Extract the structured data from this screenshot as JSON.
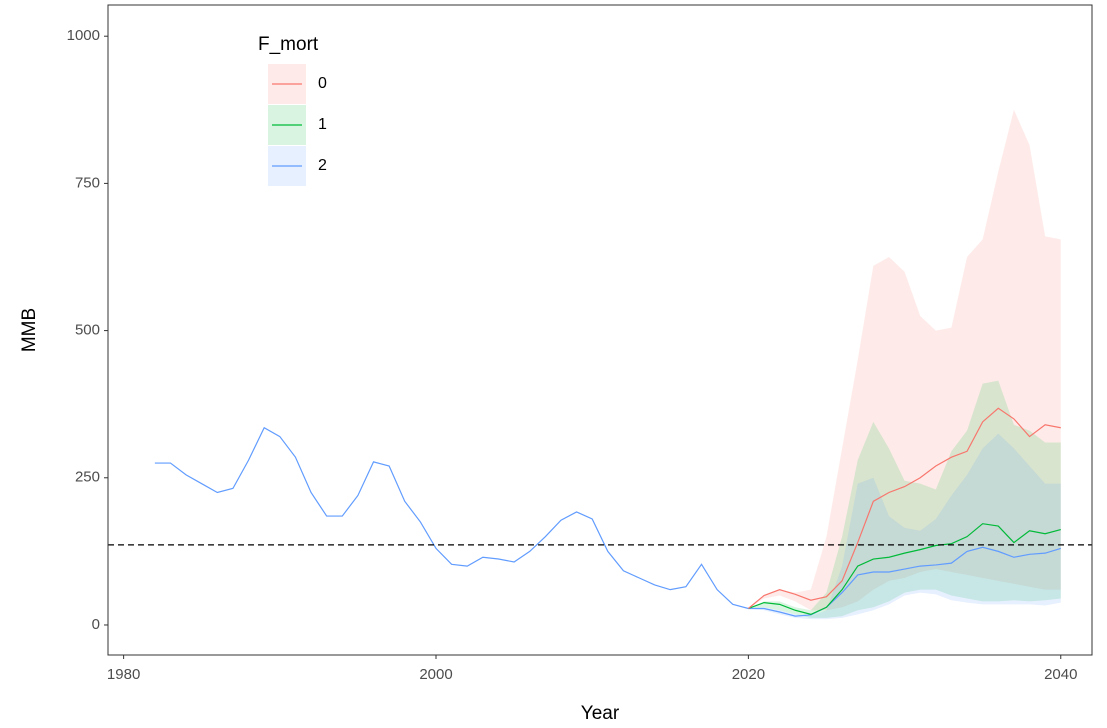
{
  "chart_data": {
    "type": "line",
    "x_label": "Year",
    "y_label": "MMB",
    "legend_title": "F_mort",
    "x": [
      1982,
      1983,
      1984,
      1985,
      1986,
      1987,
      1988,
      1989,
      1990,
      1991,
      1992,
      1993,
      1994,
      1995,
      1996,
      1997,
      1998,
      1999,
      2000,
      2001,
      2002,
      2003,
      2004,
      2005,
      2006,
      2007,
      2008,
      2009,
      2010,
      2011,
      2012,
      2013,
      2014,
      2015,
      2016,
      2017,
      2018,
      2019,
      2020,
      2021,
      2022,
      2023,
      2024,
      2025,
      2026,
      2027,
      2028,
      2029,
      2030,
      2031,
      2032,
      2033,
      2034,
      2035,
      2036,
      2037,
      2038,
      2039,
      2040
    ],
    "series": [
      {
        "name": "0",
        "color": "#F8766D",
        "values": [
          null,
          null,
          null,
          null,
          null,
          null,
          null,
          null,
          null,
          null,
          null,
          null,
          null,
          null,
          null,
          null,
          null,
          null,
          null,
          null,
          null,
          null,
          null,
          null,
          null,
          null,
          null,
          null,
          null,
          null,
          null,
          null,
          null,
          null,
          null,
          null,
          null,
          null,
          28,
          50,
          60,
          52,
          42,
          48,
          75,
          140,
          210,
          225,
          235,
          250,
          270,
          285,
          295,
          345,
          368,
          350,
          320,
          340,
          335
        ],
        "lower": [
          null,
          null,
          null,
          null,
          null,
          null,
          null,
          null,
          null,
          null,
          null,
          null,
          null,
          null,
          null,
          null,
          null,
          null,
          null,
          null,
          null,
          null,
          null,
          null,
          null,
          null,
          null,
          null,
          null,
          null,
          null,
          null,
          null,
          null,
          null,
          null,
          null,
          null,
          28,
          45,
          50,
          40,
          25,
          25,
          30,
          40,
          60,
          75,
          80,
          90,
          95,
          90,
          85,
          80,
          75,
          70,
          65,
          60,
          60
        ],
        "upper": [
          null,
          null,
          null,
          null,
          null,
          null,
          null,
          null,
          null,
          null,
          null,
          null,
          null,
          null,
          null,
          null,
          null,
          null,
          null,
          null,
          null,
          null,
          null,
          null,
          null,
          null,
          null,
          null,
          null,
          null,
          null,
          null,
          null,
          null,
          null,
          null,
          null,
          null,
          28,
          50,
          60,
          55,
          60,
          150,
          300,
          450,
          610,
          625,
          600,
          525,
          500,
          505,
          625,
          655,
          770,
          875,
          815,
          660,
          655
        ]
      },
      {
        "name": "1",
        "color": "#00BA38",
        "values": [
          null,
          null,
          null,
          null,
          null,
          null,
          null,
          null,
          null,
          null,
          null,
          null,
          null,
          null,
          null,
          null,
          null,
          null,
          null,
          null,
          null,
          null,
          null,
          null,
          null,
          null,
          null,
          null,
          null,
          null,
          null,
          null,
          null,
          null,
          null,
          null,
          null,
          null,
          28,
          38,
          35,
          25,
          18,
          30,
          60,
          100,
          112,
          115,
          122,
          128,
          135,
          138,
          150,
          172,
          168,
          140,
          160,
          155,
          162
        ],
        "lower": [
          null,
          null,
          null,
          null,
          null,
          null,
          null,
          null,
          null,
          null,
          null,
          null,
          null,
          null,
          null,
          null,
          null,
          null,
          null,
          null,
          null,
          null,
          null,
          null,
          null,
          null,
          null,
          null,
          null,
          null,
          null,
          null,
          null,
          null,
          null,
          null,
          null,
          null,
          28,
          30,
          25,
          18,
          12,
          12,
          15,
          25,
          30,
          40,
          55,
          60,
          60,
          50,
          45,
          40,
          40,
          42,
          40,
          42,
          45
        ],
        "upper": [
          null,
          null,
          null,
          null,
          null,
          null,
          null,
          null,
          null,
          null,
          null,
          null,
          null,
          null,
          null,
          null,
          null,
          null,
          null,
          null,
          null,
          null,
          null,
          null,
          null,
          null,
          null,
          null,
          null,
          null,
          null,
          null,
          null,
          null,
          null,
          null,
          null,
          null,
          28,
          40,
          40,
          30,
          25,
          55,
          150,
          280,
          345,
          300,
          245,
          240,
          230,
          295,
          330,
          410,
          415,
          340,
          330,
          310,
          310
        ]
      },
      {
        "name": "2",
        "color": "#619CFF",
        "values": [
          275,
          275,
          255,
          240,
          225,
          232,
          280,
          335,
          320,
          285,
          225,
          185,
          185,
          220,
          277,
          270,
          210,
          175,
          130,
          103,
          100,
          115,
          112,
          107,
          125,
          150,
          178,
          192,
          180,
          125,
          92,
          80,
          68,
          60,
          65,
          103,
          60,
          35,
          28,
          28,
          22,
          15,
          17,
          30,
          55,
          85,
          90,
          90,
          95,
          100,
          102,
          105,
          125,
          132,
          125,
          115,
          120,
          122,
          130
        ],
        "lower": [
          null,
          null,
          null,
          null,
          null,
          null,
          null,
          null,
          null,
          null,
          null,
          null,
          null,
          null,
          null,
          null,
          null,
          null,
          null,
          null,
          null,
          null,
          null,
          null,
          null,
          null,
          null,
          null,
          null,
          null,
          null,
          null,
          null,
          null,
          null,
          null,
          null,
          null,
          28,
          25,
          18,
          12,
          10,
          10,
          12,
          18,
          25,
          35,
          50,
          55,
          52,
          42,
          38,
          35,
          35,
          35,
          35,
          33,
          38
        ],
        "upper": [
          null,
          null,
          null,
          null,
          null,
          null,
          null,
          null,
          null,
          null,
          null,
          null,
          null,
          null,
          null,
          null,
          null,
          null,
          null,
          null,
          null,
          null,
          null,
          null,
          null,
          null,
          null,
          null,
          null,
          null,
          null,
          null,
          null,
          null,
          null,
          null,
          null,
          null,
          28,
          30,
          25,
          18,
          15,
          25,
          100,
          240,
          250,
          185,
          165,
          160,
          180,
          220,
          255,
          300,
          325,
          300,
          270,
          240,
          240
        ]
      }
    ],
    "hline": 136,
    "xlim": [
      1979,
      2042
    ],
    "xticks": [
      1980,
      2000,
      2020,
      2040
    ],
    "ylim": [
      -51,
      1053
    ],
    "yticks": [
      0,
      250,
      500,
      750,
      1000
    ],
    "grid": false,
    "legend_position": "top-left"
  }
}
